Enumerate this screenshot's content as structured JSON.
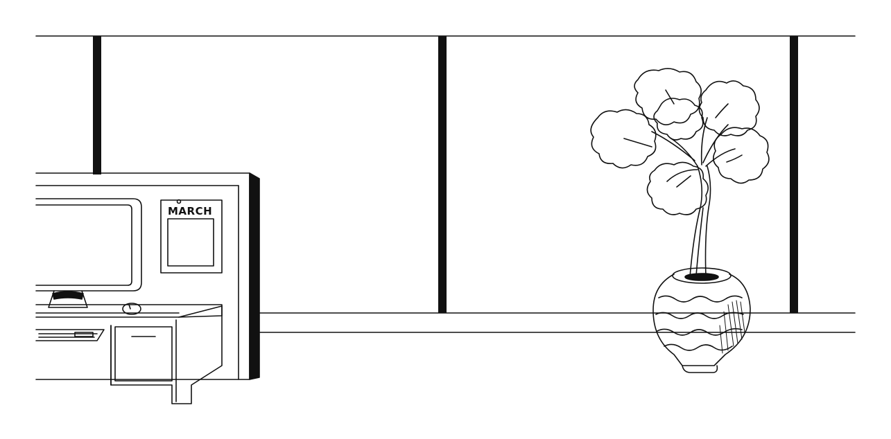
{
  "scene": {
    "calendar": {
      "month_label": "MARCH"
    },
    "colors": {
      "ink": "#111111",
      "paper": "#ffffff"
    },
    "objects": [
      "window-wall",
      "office-desk",
      "computer-monitor",
      "keyboard",
      "mouse",
      "wall-calendar",
      "potted-tree"
    ]
  }
}
